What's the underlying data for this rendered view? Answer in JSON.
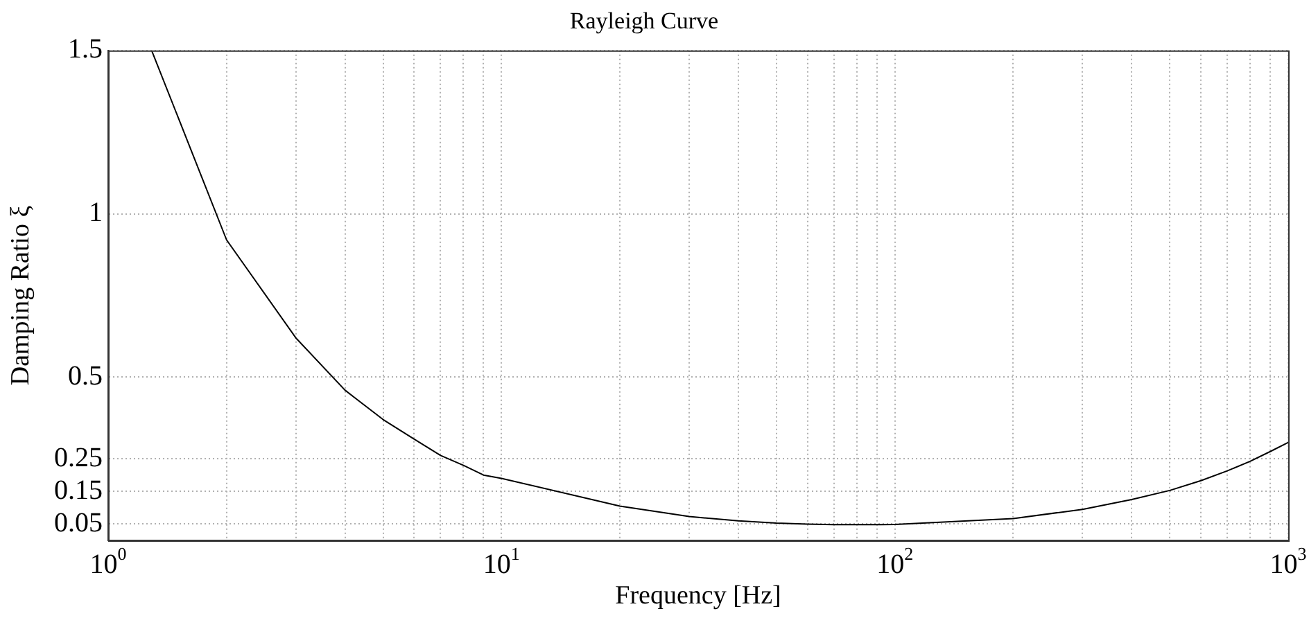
{
  "chart_data": {
    "type": "line",
    "title": "Rayleigh Curve",
    "xlabel": "Frequency [Hz]",
    "ylabel": "Damping Ratio ξ",
    "log": "x",
    "grid": true,
    "legend": false,
    "marker": "none",
    "line_style": "solid",
    "xlim": [
      1,
      1000
    ],
    "ylim": [
      0,
      1.5
    ],
    "xticks": [
      {
        "value": 1,
        "label": "10$^{0}$"
      },
      {
        "value": 2,
        "label": null
      },
      {
        "value": 3,
        "label": null
      },
      {
        "value": 4,
        "label": null
      },
      {
        "value": 5,
        "label": null
      },
      {
        "value": 6,
        "label": null
      },
      {
        "value": 7,
        "label": null
      },
      {
        "value": 8,
        "label": null
      },
      {
        "value": 9,
        "label": null
      },
      {
        "value": 10,
        "label": "10$^{1}$"
      },
      {
        "value": 20,
        "label": null
      },
      {
        "value": 30,
        "label": null
      },
      {
        "value": 40,
        "label": null
      },
      {
        "value": 50,
        "label": null
      },
      {
        "value": 60,
        "label": null
      },
      {
        "value": 70,
        "label": null
      },
      {
        "value": 80,
        "label": null
      },
      {
        "value": 90,
        "label": null
      },
      {
        "value": 100,
        "label": "10$^{2}$"
      },
      {
        "value": 200,
        "label": null
      },
      {
        "value": 300,
        "label": null
      },
      {
        "value": 400,
        "label": null
      },
      {
        "value": 500,
        "label": null
      },
      {
        "value": 600,
        "label": null
      },
      {
        "value": 700,
        "label": null
      },
      {
        "value": 800,
        "label": null
      },
      {
        "value": 900,
        "label": null
      },
      {
        "value": 1000,
        "label": "10$^{3}$"
      }
    ],
    "yticks": [
      0.05,
      0.15,
      0.25,
      0.5,
      1,
      1.5
    ],
    "x": [
      1.29,
      2,
      3,
      4,
      5,
      6,
      7,
      8,
      9,
      10,
      20,
      30,
      40,
      50,
      60,
      70,
      80,
      90,
      100,
      200,
      300,
      400,
      500,
      600,
      700,
      800,
      900,
      1000
    ],
    "series": [
      {
        "color": "#000000",
        "values": [
          1.5,
          0.92,
          0.62,
          0.46,
          0.37,
          0.31,
          0.26,
          0.23,
          0.2,
          0.19,
          0.105,
          0.073,
          0.06,
          0.053,
          0.05,
          0.048,
          0.048,
          0.048,
          0.049,
          0.067,
          0.095,
          0.125,
          0.153,
          0.183,
          0.213,
          0.242,
          0.272,
          0.3
        ]
      }
    ]
  }
}
